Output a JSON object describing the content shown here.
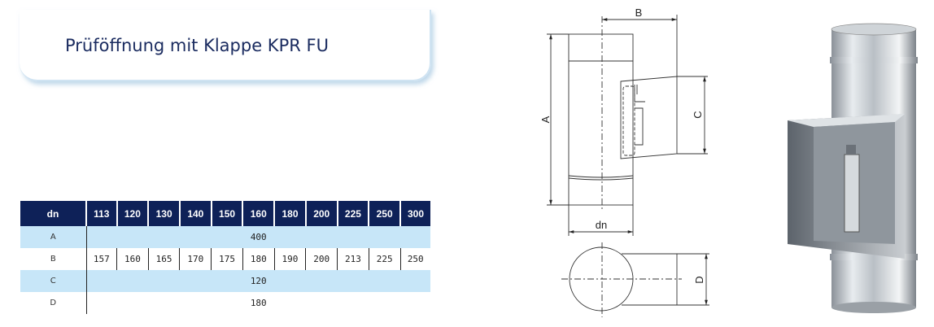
{
  "title": "Prüföffnung mit Klappe KPR FU",
  "table": {
    "header_label": "dn",
    "columns": [
      "113",
      "120",
      "130",
      "140",
      "150",
      "160",
      "180",
      "200",
      "225",
      "250",
      "300"
    ],
    "rows": [
      {
        "label": "A",
        "value": "400"
      },
      {
        "label": "B",
        "values": [
          "157",
          "160",
          "165",
          "170",
          "175",
          "180",
          "190",
          "200",
          "213",
          "225",
          "250"
        ]
      },
      {
        "label": "C",
        "value": "120"
      },
      {
        "label": "D",
        "value": "180"
      }
    ]
  },
  "drawing": {
    "dim_a": "A",
    "dim_b": "B",
    "dim_c": "C",
    "dim_d": "D",
    "dim_dn": "dn"
  },
  "colors": {
    "header": "#0e2158",
    "stripe": "#c7e6f8",
    "title": "#1b2c60"
  }
}
